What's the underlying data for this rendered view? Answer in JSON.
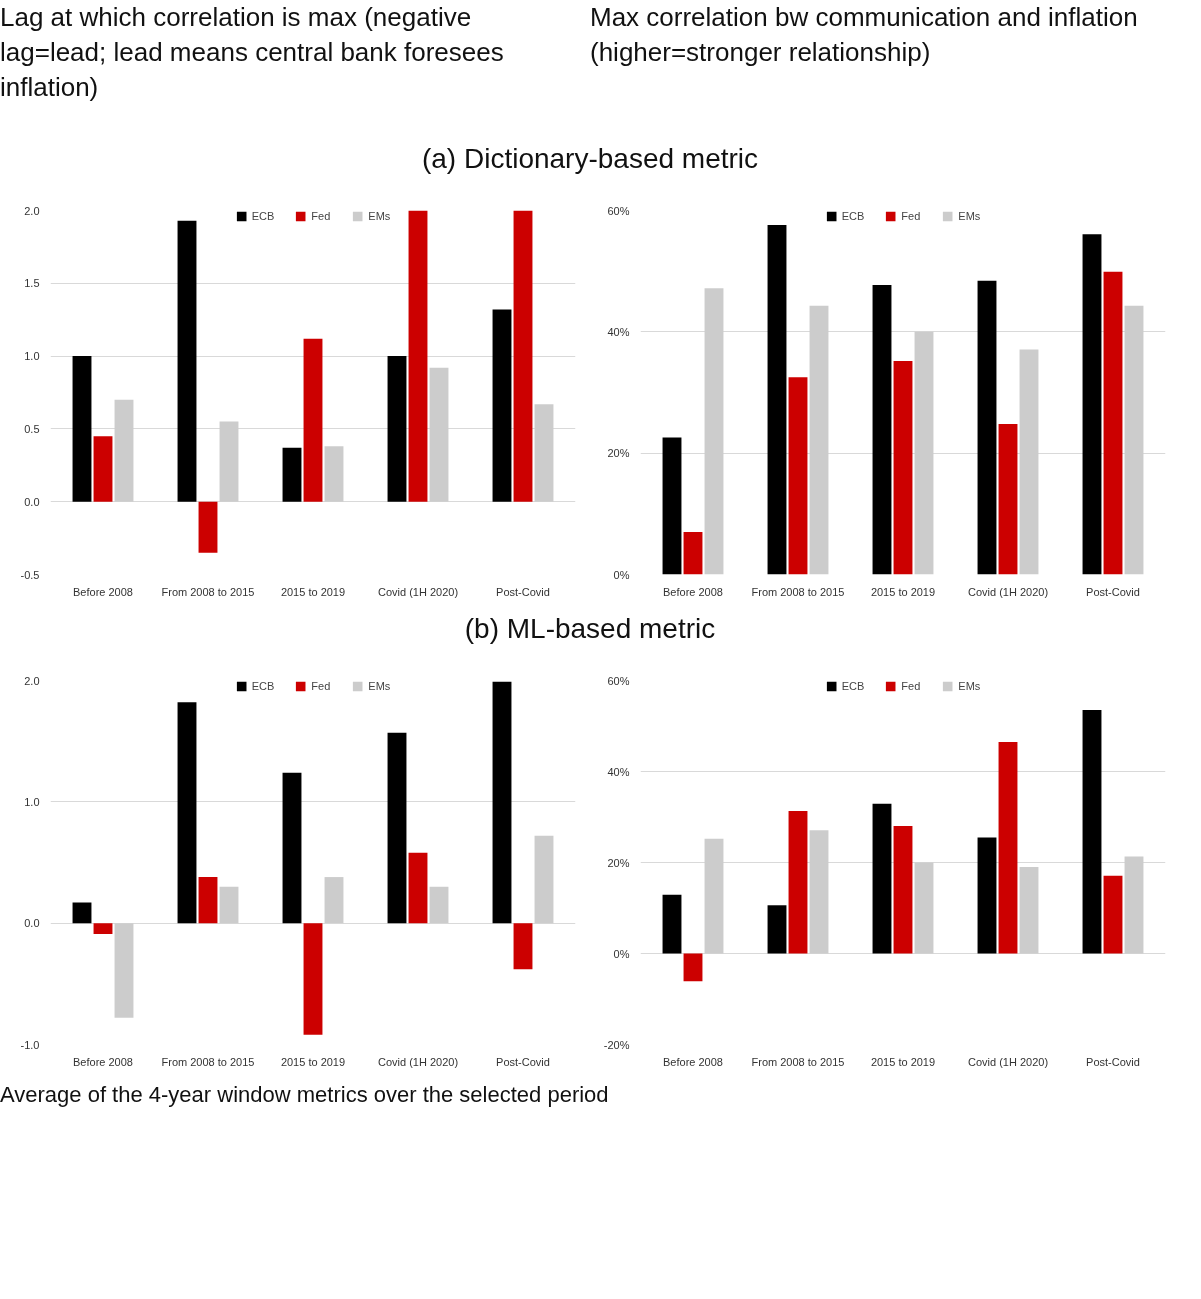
{
  "chart_data": [
    {
      "type": "bar",
      "title": "Lag at which correlation is max (negative lag=lead; lead means central bank foresees inflation)",
      "subtitle": "(a) Dictionary-based metric",
      "categories": [
        "Before 2008",
        "From 2008 to 2015",
        "2015 to 2019",
        "Covid (1H 2020)",
        "Post-Covid"
      ],
      "series": [
        {
          "name": "ECB",
          "color": "#000000",
          "values": [
            1.0,
            1.93,
            0.37,
            1.0,
            1.32
          ]
        },
        {
          "name": "Fed",
          "color": "#cc0000",
          "values": [
            0.45,
            -0.35,
            1.12,
            2.0,
            2.0
          ]
        },
        {
          "name": "EMs",
          "color": "#cccccc",
          "values": [
            0.7,
            0.55,
            0.38,
            0.92,
            0.67
          ]
        }
      ],
      "ylim": [
        -0.5,
        2.0
      ],
      "yticks": [
        {
          "value": -0.5,
          "label": "-0.5"
        },
        {
          "value": 0,
          "label": "0.0"
        },
        {
          "value": 0.5,
          "label": "0.5"
        },
        {
          "value": 1,
          "label": "1.0"
        },
        {
          "value": 1.5,
          "label": "1.5"
        },
        {
          "value": 2,
          "label": "2.0"
        }
      ],
      "grid": "y",
      "legend": "top"
    },
    {
      "type": "bar",
      "title": "Max correlation bw communication and inflation (higher=stronger relationship)",
      "categories": [
        "Before 2008",
        "From 2008 to 2015",
        "2015 to 2019",
        "Covid (1H 2020)",
        "Post-Covid"
      ],
      "series": [
        {
          "name": "ECB",
          "color": "#000000",
          "values": [
            22.6,
            57.6,
            47.7,
            48.4,
            56.1
          ]
        },
        {
          "name": "Fed",
          "color": "#cc0000",
          "values": [
            7,
            32.5,
            35.2,
            24.8,
            49.9
          ]
        },
        {
          "name": "EMs",
          "color": "#cccccc",
          "values": [
            47.2,
            44.3,
            40,
            37.1,
            44.3
          ]
        }
      ],
      "ylim": [
        0,
        60
      ],
      "yticks": [
        {
          "value": 0,
          "label": "0%"
        },
        {
          "value": 20,
          "label": "20%"
        },
        {
          "value": 40,
          "label": "40%"
        },
        {
          "value": 60,
          "label": "60%"
        }
      ],
      "grid": "y",
      "legend": "top"
    },
    {
      "type": "bar",
      "subtitle": "(b) ML-based metric",
      "categories": [
        "Before 2008",
        "From 2008 to 2015",
        "2015 to 2019",
        "Covid (1H 2020)",
        "Post-Covid"
      ],
      "series": [
        {
          "name": "ECB",
          "color": "#000000",
          "values": [
            0.17,
            1.82,
            1.24,
            1.57,
            1.99
          ]
        },
        {
          "name": "Fed",
          "color": "#cc0000",
          "values": [
            -0.09,
            0.38,
            -0.92,
            0.58,
            -0.38
          ]
        },
        {
          "name": "EMs",
          "color": "#cccccc",
          "values": [
            -0.78,
            0.3,
            0.38,
            0.3,
            0.72
          ]
        }
      ],
      "ylim": [
        -1,
        2
      ],
      "yticks": [
        {
          "value": -1,
          "label": "-1.0"
        },
        {
          "value": 0,
          "label": "0.0"
        },
        {
          "value": 1,
          "label": "1.0"
        },
        {
          "value": 2,
          "label": "2.0"
        }
      ],
      "grid": "y",
      "legend": "top"
    },
    {
      "type": "bar",
      "categories": [
        "Before 2008",
        "From 2008 to 2015",
        "2015 to 2019",
        "Covid (1H 2020)",
        "Post-Covid"
      ],
      "series": [
        {
          "name": "ECB",
          "color": "#000000",
          "values": [
            12.9,
            10.6,
            32.9,
            25.5,
            53.5
          ]
        },
        {
          "name": "Fed",
          "color": "#cc0000",
          "values": [
            -6.1,
            31.3,
            28,
            46.5,
            17.1
          ]
        },
        {
          "name": "EMs",
          "color": "#cccccc",
          "values": [
            25.2,
            27.1,
            20,
            19,
            21.3
          ]
        }
      ],
      "ylim": [
        -20,
        60
      ],
      "yticks": [
        {
          "value": -20,
          "label": "-20%"
        },
        {
          "value": 0,
          "label": "0%"
        },
        {
          "value": 20,
          "label": "20%"
        },
        {
          "value": 40,
          "label": "40%"
        },
        {
          "value": 60,
          "label": "60%"
        }
      ],
      "grid": "y",
      "legend": "top",
      "annotations": [
        "Average of the 4-year window metrics over the selected period"
      ]
    }
  ]
}
